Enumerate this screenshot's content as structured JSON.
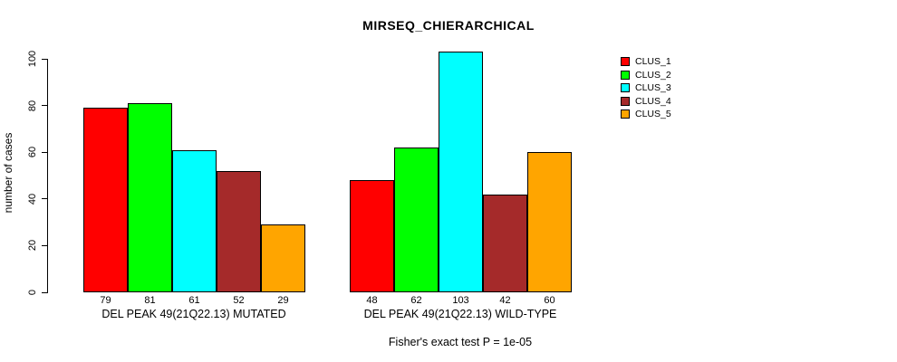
{
  "title": "MIRSEQ_CHIERARCHICAL",
  "caption": "Fisher's exact test P = 1e-05",
  "chart_data": {
    "type": "bar",
    "title": "MIRSEQ_CHIERARCHICAL",
    "xlabel": "",
    "ylabel": "number of cases",
    "ylim": [
      0,
      100
    ],
    "yticks": [
      0,
      20,
      40,
      60,
      80,
      100
    ],
    "grid": false,
    "legend_position": "right-outside",
    "bar_value_labels_shown": true,
    "annotation": "Fisher's exact test P = 1e-05",
    "categories": [
      "DEL PEAK 49(21Q22.13) MUTATED",
      "DEL PEAK 49(21Q22.13) WILD-TYPE"
    ],
    "groups": [
      {
        "label": "DEL PEAK 49(21Q22.13) MUTATED",
        "values": [
          79,
          81,
          61,
          52,
          29
        ]
      },
      {
        "label": "DEL PEAK 49(21Q22.13) WILD-TYPE",
        "values": [
          48,
          62,
          103,
          42,
          60
        ]
      }
    ],
    "series": [
      {
        "name": "CLUS_1",
        "color": "#ff0000"
      },
      {
        "name": "CLUS_2",
        "color": "#00ff00"
      },
      {
        "name": "CLUS_3",
        "color": "#00ffff"
      },
      {
        "name": "CLUS_4",
        "color": "#a52a2a"
      },
      {
        "name": "CLUS_5",
        "color": "#ffa500"
      }
    ]
  }
}
